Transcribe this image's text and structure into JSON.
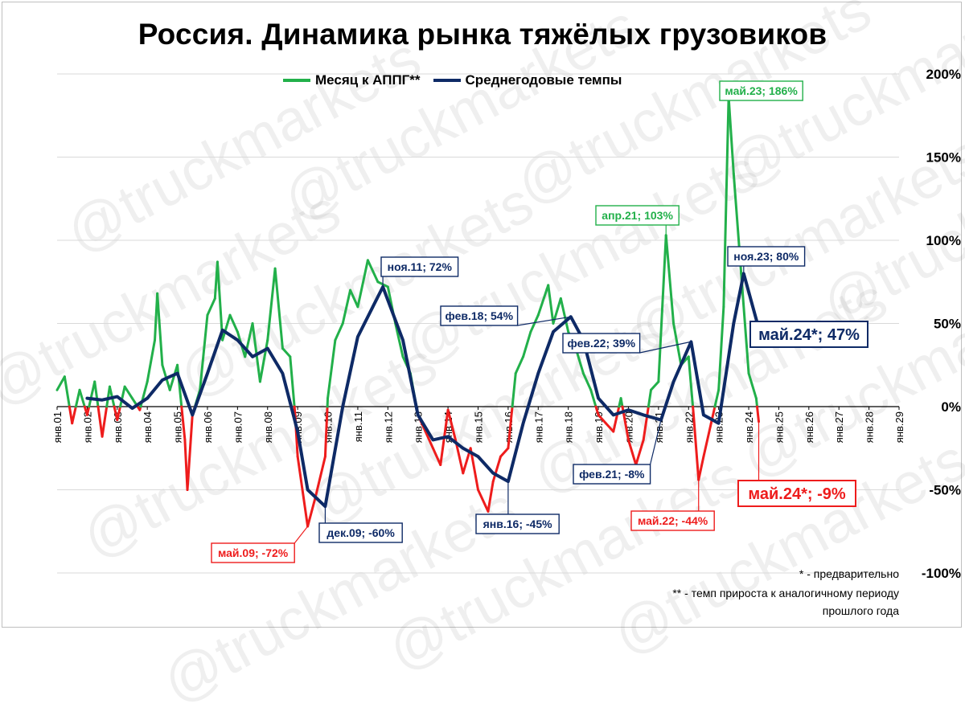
{
  "title": "Россия. Динамика рынка тяжёлых грузовиков",
  "watermark": "@truckmarkets",
  "legend": [
    {
      "label": "Месяц к АППГ**",
      "color": "#22b04a"
    },
    {
      "label": "Среднегодовые темпы",
      "color": "#0e2a66"
    }
  ],
  "colors": {
    "monthly_pos": "#22b04a",
    "monthly_neg": "#ee1c1c",
    "average": "#0e2a66",
    "grid": "#d9d9d9"
  },
  "notes": [
    "* - предварительно",
    "** - темп прироста к аналогичному периоду",
    "прошлого года"
  ],
  "chart_data": {
    "type": "line",
    "title": "Россия. Динамика рынка тяжёлых грузовиков",
    "xlabel": "",
    "ylabel": "",
    "ylim": [
      -100,
      200
    ],
    "yticks": [
      -100,
      -50,
      0,
      50,
      100,
      150,
      200
    ],
    "ytick_labels": [
      "-100%",
      "-50%",
      "0%",
      "50%",
      "100%",
      "150%",
      "200%"
    ],
    "x_range": [
      "янв.01",
      "янв.29"
    ],
    "xtick_labels": [
      "янв.01",
      "янв.02",
      "янв.03",
      "янв.04",
      "янв.05",
      "янв.06",
      "янв.07",
      "янв.08",
      "янв.09",
      "янв.10",
      "янв.11",
      "янв.12",
      "янв.13",
      "янв.14",
      "янв.15",
      "янв.16",
      "янв.17",
      "янв.18",
      "янв.19",
      "янв.20",
      "янв.21",
      "янв.22",
      "янв.23",
      "янв.24",
      "янв.25",
      "янв.26",
      "янв.27",
      "янв.28",
      "янв.29"
    ],
    "grid": {
      "horizontal": true,
      "vertical": false
    },
    "y_axis_position": "right",
    "legend_position": "top",
    "series": [
      {
        "name": "Месяц к АППГ**",
        "color_positive": "#22b04a",
        "color_negative": "#ee1c1c",
        "points": [
          [
            "янв.01",
            10
          ],
          [
            "апр.01",
            18
          ],
          [
            "июл.01",
            -10
          ],
          [
            "окт.01",
            10
          ],
          [
            "янв.02",
            -5
          ],
          [
            "апр.02",
            15
          ],
          [
            "июл.02",
            -18
          ],
          [
            "окт.02",
            12
          ],
          [
            "янв.03",
            -8
          ],
          [
            "апр.03",
            12
          ],
          [
            "июл.03",
            5
          ],
          [
            "окт.03",
            -2
          ],
          [
            "янв.04",
            15
          ],
          [
            "апр.04",
            40
          ],
          [
            "май.04",
            68
          ],
          [
            "июл.04",
            25
          ],
          [
            "окт.04",
            10
          ],
          [
            "янв.05",
            25
          ],
          [
            "апр.05",
            -20
          ],
          [
            "май.05",
            -50
          ],
          [
            "июл.05",
            -5
          ],
          [
            "окт.05",
            10
          ],
          [
            "янв.06",
            55
          ],
          [
            "апр.06",
            65
          ],
          [
            "май.06",
            87
          ],
          [
            "июл.06",
            40
          ],
          [
            "окт.06",
            55
          ],
          [
            "янв.07",
            45
          ],
          [
            "апр.07",
            30
          ],
          [
            "июл.07",
            50
          ],
          [
            "окт.07",
            15
          ],
          [
            "янв.08",
            40
          ],
          [
            "апр.08",
            83
          ],
          [
            "июл.08",
            35
          ],
          [
            "окт.08",
            30
          ],
          [
            "дек.08",
            -5
          ],
          [
            "янв.09",
            -30
          ],
          [
            "май.09",
            -72
          ],
          [
            "авг.09",
            -55
          ],
          [
            "дек.09",
            -30
          ],
          [
            "янв.10",
            5
          ],
          [
            "апр.10",
            40
          ],
          [
            "июл.10",
            50
          ],
          [
            "окт.10",
            70
          ],
          [
            "янв.11",
            60
          ],
          [
            "май.11",
            88
          ],
          [
            "сен.11",
            75
          ],
          [
            "янв.12",
            72
          ],
          [
            "апр.12",
            50
          ],
          [
            "июл.12",
            30
          ],
          [
            "окт.12",
            20
          ],
          [
            "янв.13",
            -5
          ],
          [
            "апр.13",
            -15
          ],
          [
            "июл.13",
            -25
          ],
          [
            "окт.13",
            -35
          ],
          [
            "янв.14",
            -2
          ],
          [
            "апр.14",
            -20
          ],
          [
            "июл.14",
            -40
          ],
          [
            "окт.14",
            -25
          ],
          [
            "янв.15",
            -50
          ],
          [
            "май.15",
            -63
          ],
          [
            "июл.15",
            -45
          ],
          [
            "окт.15",
            -30
          ],
          [
            "янв.16",
            -25
          ],
          [
            "апр.16",
            20
          ],
          [
            "июл.16",
            30
          ],
          [
            "окт.16",
            45
          ],
          [
            "янв.17",
            55
          ],
          [
            "май.17",
            73
          ],
          [
            "июл.17",
            50
          ],
          [
            "окт.17",
            65
          ],
          [
            "янв.18",
            45
          ],
          [
            "апр.18",
            35
          ],
          [
            "июл.18",
            20
          ],
          [
            "окт.18",
            10
          ],
          [
            "янв.19",
            -5
          ],
          [
            "апр.19",
            -10
          ],
          [
            "июл.19",
            -15
          ],
          [
            "окт.19",
            5
          ],
          [
            "янв.20",
            -20
          ],
          [
            "апр.20",
            -35
          ],
          [
            "июл.20",
            -20
          ],
          [
            "окт.20",
            10
          ],
          [
            "янв.21",
            15
          ],
          [
            "апр.21",
            103
          ],
          [
            "июл.21",
            50
          ],
          [
            "окт.21",
            25
          ],
          [
            "янв.22",
            30
          ],
          [
            "мар.22",
            -5
          ],
          [
            "май.22",
            -44
          ],
          [
            "июл.22",
            -30
          ],
          [
            "окт.22",
            -10
          ],
          [
            "янв.23",
            10
          ],
          [
            "мар.23",
            60
          ],
          [
            "май.23",
            186
          ],
          [
            "июл.23",
            140
          ],
          [
            "окт.23",
            80
          ],
          [
            "янв.24",
            20
          ],
          [
            "апр.24",
            5
          ],
          [
            "май.24",
            -9
          ]
        ]
      },
      {
        "name": "Среднегодовые темпы",
        "color": "#0e2a66",
        "points": [
          [
            "янв.02",
            5
          ],
          [
            "июл.02",
            4
          ],
          [
            "янв.03",
            6
          ],
          [
            "июл.03",
            -1
          ],
          [
            "янв.04",
            5
          ],
          [
            "июл.04",
            16
          ],
          [
            "янв.05",
            20
          ],
          [
            "июл.05",
            -5
          ],
          [
            "янв.06",
            20
          ],
          [
            "июл.06",
            46
          ],
          [
            "янв.07",
            40
          ],
          [
            "июл.07",
            30
          ],
          [
            "янв.08",
            35
          ],
          [
            "июл.08",
            20
          ],
          [
            "янв.09",
            -15
          ],
          [
            "май.09",
            -50
          ],
          [
            "дек.09",
            -60
          ],
          [
            "июл.10",
            0
          ],
          [
            "янв.11",
            42
          ],
          [
            "июл.11",
            60
          ],
          [
            "ноя.11",
            72
          ],
          [
            "июл.12",
            40
          ],
          [
            "янв.13",
            -5
          ],
          [
            "июл.13",
            -20
          ],
          [
            "янв.14",
            -18
          ],
          [
            "июл.14",
            -25
          ],
          [
            "янв.15",
            -30
          ],
          [
            "июл.15",
            -40
          ],
          [
            "янв.16",
            -45
          ],
          [
            "июл.16",
            -10
          ],
          [
            "янв.17",
            20
          ],
          [
            "июл.17",
            45
          ],
          [
            "фев.18",
            54
          ],
          [
            "июл.18",
            40
          ],
          [
            "янв.19",
            5
          ],
          [
            "июл.19",
            -5
          ],
          [
            "янв.20",
            -2
          ],
          [
            "июл.20",
            -5
          ],
          [
            "фев.21",
            -8
          ],
          [
            "июл.21",
            15
          ],
          [
            "фев.22",
            39
          ],
          [
            "июл.22",
            -5
          ],
          [
            "янв.23",
            -10
          ],
          [
            "июл.23",
            50
          ],
          [
            "ноя.23",
            80
          ],
          [
            "май.24",
            47
          ]
        ]
      }
    ],
    "annotations": [
      {
        "text": "май.09; -72%",
        "series": "Месяц к АППГ**",
        "x": "май.09",
        "y": -72,
        "color": "#ee1c1c"
      },
      {
        "text": "дек.09; -60%",
        "series": "Среднегодовые темпы",
        "x": "дек.09",
        "y": -60,
        "color": "#0e2a66"
      },
      {
        "text": "ноя.11; 72%",
        "series": "Среднегодовые темпы",
        "x": "ноя.11",
        "y": 72,
        "color": "#0e2a66"
      },
      {
        "text": "янв.16; -45%",
        "series": "Среднегодовые темпы",
        "x": "янв.16",
        "y": -45,
        "color": "#0e2a66"
      },
      {
        "text": "фев.18; 54%",
        "series": "Среднегодовые темпы",
        "x": "фев.18",
        "y": 54,
        "color": "#0e2a66"
      },
      {
        "text": "фев.21; -8%",
        "series": "Среднегодовые темпы",
        "x": "фев.21",
        "y": -8,
        "color": "#0e2a66"
      },
      {
        "text": "апр.21; 103%",
        "series": "Месяц к АППГ**",
        "x": "апр.21",
        "y": 103,
        "color": "#22b04a"
      },
      {
        "text": "фев.22; 39%",
        "series": "Среднегодовые темпы",
        "x": "фев.22",
        "y": 39,
        "color": "#0e2a66"
      },
      {
        "text": "май.22; -44%",
        "series": "Месяц к АППГ**",
        "x": "май.22",
        "y": -44,
        "color": "#ee1c1c"
      },
      {
        "text": "май.23; 186%",
        "series": "Месяц к АППГ**",
        "x": "май.23",
        "y": 186,
        "color": "#22b04a"
      },
      {
        "text": "ноя.23; 80%",
        "series": "Среднегодовые темпы",
        "x": "ноя.23",
        "y": 80,
        "color": "#0e2a66"
      },
      {
        "text": "май.24*; 47%",
        "series": "Среднегодовые темпы",
        "x": "май.24",
        "y": 47,
        "color": "#0e2a66",
        "large": true
      },
      {
        "text": "май.24*; -9%",
        "series": "Месяц к АППГ**",
        "x": "май.24",
        "y": -9,
        "color": "#ee1c1c",
        "large": true
      }
    ]
  }
}
